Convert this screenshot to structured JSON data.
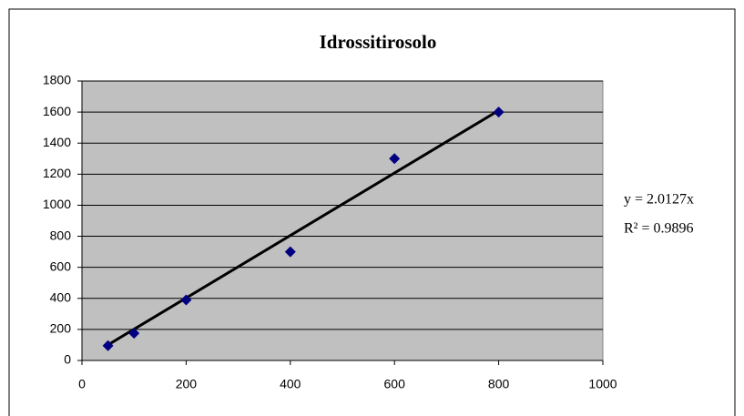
{
  "chart_data": {
    "type": "scatter",
    "title": "Idrossitirosolo",
    "x": [
      50,
      100,
      200,
      400,
      600,
      800
    ],
    "values": [
      95,
      175,
      390,
      700,
      1300,
      1600
    ],
    "color": "#000080",
    "trendline": {
      "x": [
        50,
        800
      ],
      "values": [
        100.6,
        1610.2
      ],
      "color": "#000000"
    },
    "annotations": [
      "y = 2.0127x",
      "R² = 0.9896"
    ],
    "xlim": [
      0,
      1000
    ],
    "xticks": [
      0,
      200,
      400,
      600,
      800,
      1000
    ],
    "ylim": [
      0,
      1800
    ],
    "yticks": [
      0,
      200,
      400,
      600,
      800,
      1000,
      1200,
      1400,
      1600,
      1800
    ],
    "grid": true,
    "plot_background": "#c0c0c0"
  }
}
